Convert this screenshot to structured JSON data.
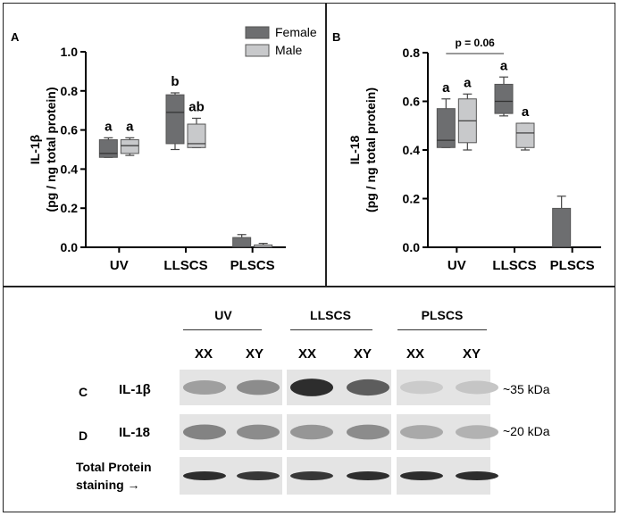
{
  "chart_data": [
    {
      "panel": "A",
      "type": "box",
      "ylabel": "IL-1β",
      "ylabel2": "(pg / ng total protein)",
      "categories": [
        "UV",
        "LLSCS",
        "PLSCS"
      ],
      "ylim": [
        0.0,
        1.0
      ],
      "yticks": [
        "0.0",
        "0.2",
        "0.4",
        "0.6",
        "0.8",
        "1.0"
      ],
      "legend": [
        "Female",
        "Male"
      ],
      "legend_position": "top-right",
      "series": [
        {
          "name": "Female",
          "color": "#6d6e70",
          "boxes": [
            {
              "min": 0.46,
              "q1": 0.46,
              "median": 0.48,
              "q3": 0.55,
              "max": 0.56
            },
            {
              "min": 0.5,
              "q1": 0.53,
              "median": 0.69,
              "q3": 0.78,
              "max": 0.79
            },
            {
              "min": 0.0,
              "q1": 0.0,
              "median": 0.0,
              "q3": 0.05,
              "max": 0.065
            }
          ],
          "letters": [
            "a",
            "b",
            ""
          ]
        },
        {
          "name": "Male",
          "color": "#c8c9cb",
          "boxes": [
            {
              "min": 0.47,
              "q1": 0.48,
              "median": 0.52,
              "q3": 0.55,
              "max": 0.56
            },
            {
              "min": 0.51,
              "q1": 0.51,
              "median": 0.53,
              "q3": 0.63,
              "max": 0.66
            },
            {
              "min": 0.0,
              "q1": 0.0,
              "median": 0.0,
              "q3": 0.012,
              "max": 0.02
            }
          ],
          "letters": [
            "a",
            "ab",
            ""
          ]
        }
      ]
    },
    {
      "panel": "B",
      "type": "box",
      "ylabel": "IL-18",
      "ylabel2": "(pg / ng total protein)",
      "categories": [
        "UV",
        "LLSCS",
        "PLSCS"
      ],
      "ylim": [
        0.0,
        0.8
      ],
      "yticks": [
        "0.0",
        "0.2",
        "0.4",
        "0.6",
        "0.8"
      ],
      "annotation": "p = 0.06",
      "series": [
        {
          "name": "Female",
          "color": "#6d6e70",
          "boxes": [
            {
              "min": 0.41,
              "q1": 0.41,
              "median": 0.44,
              "q3": 0.57,
              "max": 0.61
            },
            {
              "min": 0.54,
              "q1": 0.55,
              "median": 0.6,
              "q3": 0.67,
              "max": 0.7
            },
            {
              "min": 0.0,
              "q1": 0.0,
              "median": 0.0,
              "q3": 0.16,
              "max": 0.21
            }
          ],
          "letters": [
            "a",
            "a",
            ""
          ]
        },
        {
          "name": "Male",
          "color": "#c8c9cb",
          "boxes": [
            {
              "min": 0.4,
              "q1": 0.43,
              "median": 0.52,
              "q3": 0.61,
              "max": 0.63
            },
            {
              "min": 0.4,
              "q1": 0.41,
              "median": 0.47,
              "q3": 0.51,
              "max": 0.51
            },
            null
          ],
          "letters": [
            "a",
            "a",
            ""
          ]
        }
      ]
    }
  ],
  "blot": {
    "groups": [
      "UV",
      "LLSCS",
      "PLSCS"
    ],
    "lanes": [
      "XX",
      "XY",
      "XX",
      "XY",
      "XX",
      "XY"
    ],
    "rows": [
      {
        "letter": "C",
        "label": "IL-1β",
        "kda": "~35 kDa",
        "intensity": [
          0.35,
          0.45,
          0.95,
          0.7,
          0.12,
          0.15
        ]
      },
      {
        "letter": "D",
        "label": "IL-18",
        "kda": "~20 kDa",
        "intensity": [
          0.5,
          0.45,
          0.4,
          0.45,
          0.3,
          0.25
        ]
      },
      {
        "label": "Total Protein",
        "label2": "staining  →",
        "intensity": [
          0.95,
          0.9,
          0.9,
          0.95,
          0.95,
          0.95
        ]
      }
    ]
  }
}
